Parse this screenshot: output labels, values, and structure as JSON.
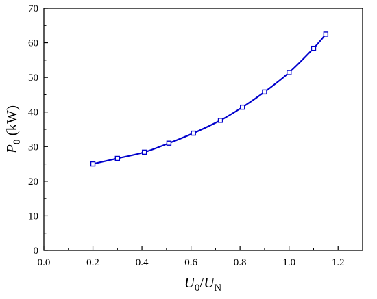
{
  "chart_data": {
    "type": "line",
    "x": [
      0.2,
      0.3,
      0.41,
      0.51,
      0.61,
      0.72,
      0.81,
      0.9,
      1.0,
      1.1,
      1.15
    ],
    "series": [
      {
        "values": [
          25,
          26.6,
          28.4,
          31,
          33.9,
          37.6,
          41.4,
          45.8,
          51.4,
          58.4,
          62.5
        ]
      }
    ],
    "xlabel": {
      "main": "U",
      "sub": "0",
      "slash": "/",
      "main2": "U",
      "sub2": "N"
    },
    "ylabel": {
      "main": "P",
      "sub": "0",
      "unit": " (kW)"
    },
    "xlim": [
      0.0,
      1.3
    ],
    "ylim": [
      0,
      70
    ],
    "xticks": [
      "0.0",
      "0.2",
      "0.4",
      "0.6",
      "0.8",
      "1.0",
      "1.2"
    ],
    "yticks": [
      "0",
      "10",
      "20",
      "30",
      "40",
      "50",
      "60",
      "70"
    ],
    "grid": false,
    "colors": {
      "line": "#0000cc",
      "marker": "#0000cc"
    },
    "marker": "square"
  }
}
